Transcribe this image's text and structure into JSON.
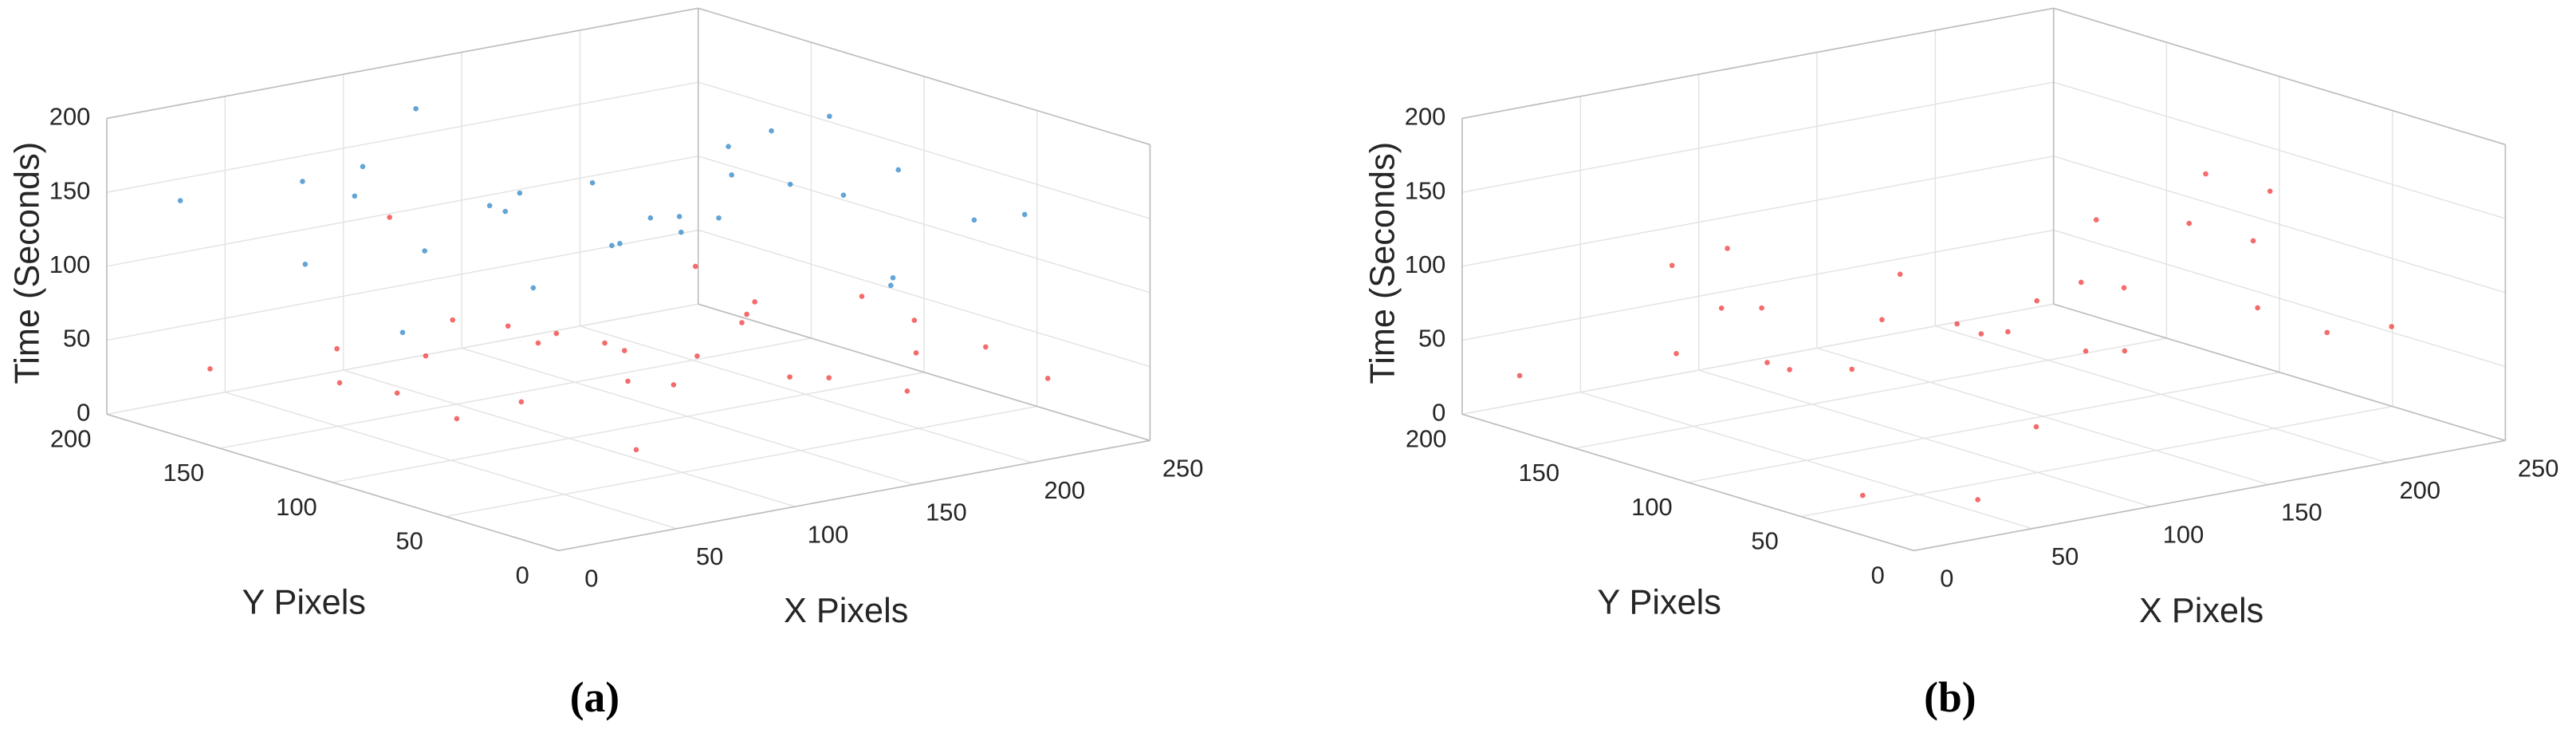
{
  "chart_data": [
    {
      "type": "scatter3d",
      "label": "(a)",
      "xlabel": "X Pixels",
      "ylabel": "Y Pixels",
      "zlabel": "Time (Seconds)",
      "xlim": [
        0,
        250
      ],
      "ylim": [
        0,
        200
      ],
      "zlim": [
        0,
        200
      ],
      "xticks": [
        0,
        50,
        100,
        150,
        200,
        250
      ],
      "yticks": [
        0,
        50,
        100,
        150,
        200
      ],
      "zticks": [
        0,
        50,
        100,
        150,
        200
      ],
      "grid": true,
      "series": [
        {
          "color": "#2f86c8",
          "x": [
            12,
            35,
            58,
            80,
            102,
            125,
            148,
            170,
            195,
            220,
            240,
            20,
            45,
            70,
            95,
            118,
            140,
            165,
            190,
            215,
            235,
            30,
            60,
            90,
            120,
            150,
            180,
            210,
            100,
            160
          ],
          "y": [
            180,
            150,
            120,
            95,
            170,
            60,
            140,
            30,
            110,
            80,
            45,
            90,
            20,
            160,
            130,
            100,
            70,
            190,
            15,
            150,
            120,
            55,
            175,
            40,
            85,
            10,
            135,
            100,
            195,
            65
          ],
          "z": [
            150,
            170,
            130,
            110,
            190,
            160,
            140,
            120,
            175,
            155,
            135,
            100,
            185,
            165,
            145,
            125,
            180,
            105,
            160,
            140,
            115,
            195,
            95,
            170,
            150,
            130,
            110,
            185,
            120,
            170
          ]
        },
        {
          "color": "#f03a3a",
          "x": [
            15,
            40,
            62,
            85,
            108,
            130,
            152,
            175,
            198,
            222,
            245,
            25,
            50,
            75,
            98,
            120,
            145,
            168,
            192,
            218,
            238,
            32,
            65,
            92,
            125,
            155,
            182,
            205,
            110,
            115
          ],
          "y": [
            170,
            140,
            110,
            90,
            160,
            55,
            130,
            25,
            105,
            75,
            40,
            85,
            18,
            150,
            125,
            95,
            65,
            185,
            12,
            145,
            115,
            50,
            165,
            35,
            80,
            8,
            130,
            95,
            190,
            100
          ],
          "z": [
            40,
            60,
            20,
            80,
            50,
            90,
            30,
            70,
            10,
            55,
            25,
            85,
            45,
            15,
            65,
            35,
            95,
            5,
            75,
            28,
            48,
            68,
            18,
            88,
            38,
            58,
            78,
            12,
            105,
            60
          ]
        }
      ]
    },
    {
      "type": "scatter3d",
      "label": "(b)",
      "xlabel": "X Pixels",
      "ylabel": "Y Pixels",
      "zlabel": "Time (Seconds)",
      "xlim": [
        0,
        250
      ],
      "ylim": [
        0,
        200
      ],
      "zlim": [
        0,
        200
      ],
      "xticks": [
        0,
        50,
        100,
        150,
        200,
        250
      ],
      "yticks": [
        0,
        50,
        100,
        150,
        200
      ],
      "zticks": [
        0,
        50,
        100,
        150,
        200
      ],
      "grid": true,
      "series": [
        {
          "color": "#f03a3a",
          "x": [
            10,
            38,
            55,
            82,
            105,
            128,
            150,
            172,
            196,
            225,
            242,
            22,
            48,
            72,
            96,
            122,
            142,
            166,
            188,
            212,
            236,
            28,
            62,
            88,
            118,
            152,
            178,
            208,
            102,
            148
          ],
          "y": [
            185,
            145,
            125,
            92,
            165,
            58,
            138,
            28,
            112,
            78,
            42,
            88,
            22,
            158,
            128,
            98,
            68,
            188,
            14,
            148,
            118,
            52,
            172,
            38,
            82,
            9,
            132,
            96,
            192,
            62
          ],
          "z": [
            30,
            55,
            90,
            120,
            15,
            70,
            45,
            100,
            25,
            140,
            60,
            80,
            10,
            110,
            35,
            65,
            150,
            20,
            85,
            50,
            130,
            5,
            95,
            40,
            75,
            160,
            55,
            115,
            45,
            105
          ]
        }
      ]
    }
  ]
}
